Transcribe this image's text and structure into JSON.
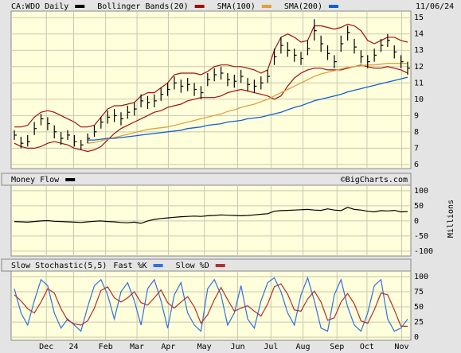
{
  "chart_data": [
    {
      "type": "ohlc",
      "date": "11/06/24",
      "ylim": [
        5.75,
        15.4
      ],
      "yticks": [
        6,
        7,
        8,
        9,
        10,
        11,
        12,
        13,
        14,
        15
      ],
      "series": [
        {
          "name": "CA:WDO Daily",
          "color": "#000000",
          "high": [
            8.1,
            7.7,
            7.8,
            8.6,
            9.1,
            8.9,
            8.4,
            8.0,
            8.1,
            7.8,
            7.5,
            7.9,
            8.4,
            8.9,
            9.3,
            9.4,
            9.2,
            9.6,
            9.8,
            10.3,
            10.2,
            10.3,
            10.7,
            11.0,
            11.4,
            11.2,
            11.3,
            11.0,
            10.8,
            11.6,
            11.9,
            12.0,
            11.6,
            11.5,
            11.8,
            11.3,
            11.2,
            11.4,
            11.8,
            13.1,
            13.8,
            13.5,
            13.1,
            12.9,
            13.6,
            14.9,
            13.9,
            13.3,
            12.7,
            13.9,
            14.5,
            13.7,
            13.0,
            12.7,
            13.1,
            13.7,
            14.0,
            13.3,
            12.7,
            12.3
          ],
          "low": [
            7.5,
            7.0,
            7.1,
            7.8,
            8.4,
            8.1,
            7.6,
            7.2,
            7.5,
            7.1,
            6.9,
            7.3,
            7.7,
            8.2,
            8.5,
            8.6,
            8.4,
            8.8,
            9.0,
            9.5,
            9.4,
            9.5,
            9.9,
            10.2,
            10.6,
            10.4,
            10.5,
            10.2,
            10.0,
            10.8,
            11.1,
            11.2,
            10.8,
            10.7,
            11.0,
            10.5,
            10.4,
            10.6,
            11.0,
            12.1,
            12.8,
            12.6,
            12.3,
            12.1,
            12.7,
            13.6,
            12.9,
            12.4,
            11.9,
            12.9,
            13.6,
            12.8,
            12.2,
            11.9,
            12.3,
            12.9,
            13.2,
            12.5,
            11.9,
            11.5
          ],
          "close": [
            7.8,
            7.3,
            7.4,
            8.2,
            8.8,
            8.5,
            8.0,
            7.6,
            7.8,
            7.4,
            7.2,
            7.6,
            8.0,
            8.6,
            8.9,
            9.0,
            8.8,
            9.2,
            9.4,
            9.9,
            9.8,
            9.9,
            10.3,
            10.6,
            11.0,
            10.8,
            10.9,
            10.6,
            10.4,
            11.2,
            11.5,
            11.6,
            11.2,
            11.1,
            11.4,
            10.9,
            10.8,
            11.0,
            11.4,
            12.6,
            13.3,
            13.0,
            12.7,
            12.5,
            13.1,
            14.2,
            13.4,
            12.8,
            12.3,
            13.4,
            14.1,
            13.2,
            12.6,
            12.3,
            12.7,
            13.3,
            13.6,
            12.9,
            12.3,
            11.9
          ]
        },
        {
          "name": "Bollinger Bands(20)",
          "color": "#a01010",
          "upper": [
            8.3,
            8.3,
            8.4,
            8.9,
            9.2,
            9.3,
            9.2,
            9.0,
            8.8,
            8.6,
            8.3,
            8.3,
            8.4,
            8.9,
            9.4,
            9.6,
            9.6,
            9.7,
            9.8,
            10.2,
            10.4,
            10.4,
            10.7,
            11.0,
            11.5,
            11.6,
            11.6,
            11.6,
            11.5,
            11.7,
            12.0,
            12.1,
            12.1,
            12.0,
            12.0,
            11.9,
            11.8,
            11.6,
            11.8,
            13.0,
            13.8,
            14.0,
            13.8,
            13.5,
            13.6,
            14.5,
            14.5,
            14.4,
            14.3,
            14.4,
            14.6,
            14.5,
            14.2,
            13.6,
            13.4,
            13.6,
            13.8,
            13.8,
            13.6,
            13.5
          ],
          "lower": [
            7.3,
            7.1,
            7.0,
            7.0,
            7.1,
            7.3,
            7.4,
            7.3,
            7.2,
            7.0,
            6.9,
            6.8,
            6.9,
            7.1,
            7.5,
            7.9,
            8.2,
            8.4,
            8.6,
            8.8,
            9.0,
            9.2,
            9.3,
            9.5,
            9.6,
            9.7,
            9.9,
            10.0,
            10.1,
            10.1,
            10.1,
            10.2,
            10.4,
            10.5,
            10.6,
            10.5,
            10.4,
            10.3,
            10.2,
            10.0,
            10.2,
            10.8,
            11.3,
            11.6,
            11.8,
            11.9,
            11.9,
            11.8,
            11.8,
            11.8,
            11.9,
            12.0,
            12.1,
            12.0,
            11.9,
            11.9,
            12.0,
            11.9,
            11.8,
            11.6
          ]
        },
        {
          "name": "SMA(100)",
          "color": "#e0a040",
          "values": [
            null,
            null,
            null,
            null,
            null,
            null,
            null,
            null,
            null,
            null,
            null,
            7.3,
            7.35,
            7.45,
            7.55,
            7.65,
            7.75,
            7.85,
            7.95,
            8.05,
            8.15,
            8.2,
            8.25,
            8.3,
            8.4,
            8.5,
            8.6,
            8.7,
            8.8,
            8.9,
            9.0,
            9.1,
            9.25,
            9.35,
            9.5,
            9.6,
            9.7,
            9.85,
            10.0,
            10.2,
            10.4,
            10.6,
            10.8,
            11.0,
            11.2,
            11.4,
            11.55,
            11.65,
            11.75,
            11.85,
            11.95,
            12.0,
            12.05,
            12.1,
            12.1,
            12.15,
            12.2,
            12.2,
            12.2,
            12.2
          ]
        },
        {
          "name": "SMA(200)",
          "color": "#1060d0",
          "values": [
            null,
            null,
            null,
            null,
            null,
            null,
            null,
            null,
            null,
            null,
            null,
            7.5,
            7.5,
            7.55,
            7.6,
            7.6,
            7.65,
            7.7,
            7.75,
            7.8,
            7.85,
            7.9,
            7.95,
            8.0,
            8.05,
            8.1,
            8.2,
            8.25,
            8.3,
            8.4,
            8.45,
            8.5,
            8.6,
            8.65,
            8.7,
            8.8,
            8.85,
            8.9,
            9.0,
            9.1,
            9.2,
            9.35,
            9.5,
            9.6,
            9.75,
            9.9,
            10.0,
            10.1,
            10.2,
            10.3,
            10.45,
            10.55,
            10.65,
            10.75,
            10.85,
            10.95,
            11.05,
            11.15,
            11.25,
            11.35
          ]
        }
      ]
    },
    {
      "type": "line",
      "watermark": "©BigCharts.com",
      "ylabel": "Millions",
      "ylim": [
        -116,
        118
      ],
      "yticks": [
        100,
        50,
        0,
        -50,
        -100
      ],
      "series": [
        {
          "name": "Money Flow",
          "color": "#000000",
          "values": [
            -2,
            -3,
            -4,
            -2,
            0,
            1,
            -1,
            -2,
            -3,
            -4,
            -5,
            -3,
            -1,
            0,
            -2,
            -3,
            -5,
            -6,
            -4,
            -8,
            0,
            5,
            8,
            10,
            12,
            14,
            15,
            16,
            15,
            17,
            18,
            20,
            19,
            18,
            17,
            18,
            20,
            22,
            24,
            32,
            34,
            35,
            36,
            37,
            38,
            36,
            35,
            40,
            36,
            34,
            45,
            38,
            36,
            32,
            30,
            34,
            33,
            35,
            30,
            31
          ]
        }
      ]
    },
    {
      "type": "line",
      "title": "Slow Stochastic(5,5)",
      "ylim": [
        -5,
        109
      ],
      "yticks": [
        0,
        25,
        50,
        75,
        100
      ],
      "xticks": [
        {
          "value": 4.8,
          "label": "Dec"
        },
        {
          "value": 8.9,
          "label": "24"
        },
        {
          "value": 13.7,
          "label": "Feb"
        },
        {
          "value": 18.4,
          "label": "Mar"
        },
        {
          "value": 23.1,
          "label": "Apr"
        },
        {
          "value": 28.5,
          "label": "May"
        },
        {
          "value": 33.5,
          "label": "Jun"
        },
        {
          "value": 38.5,
          "label": "Jul"
        },
        {
          "value": 43.3,
          "label": "Aug"
        },
        {
          "value": 48.4,
          "label": "Sep"
        },
        {
          "value": 52.9,
          "label": "Oct"
        },
        {
          "value": 58.1,
          "label": "Nov"
        }
      ],
      "series": [
        {
          "name": "Fast %K",
          "color": "#3070e0",
          "values": [
            80,
            40,
            20,
            60,
            95,
            85,
            40,
            15,
            30,
            20,
            10,
            50,
            85,
            95,
            70,
            30,
            75,
            90,
            60,
            20,
            80,
            95,
            60,
            15,
            70,
            90,
            40,
            20,
            10,
            80,
            95,
            70,
            20,
            40,
            85,
            30,
            15,
            60,
            90,
            98,
            75,
            40,
            20,
            70,
            98,
            60,
            15,
            10,
            70,
            95,
            50,
            20,
            10,
            40,
            85,
            95,
            30,
            10,
            15,
            30
          ]
        },
        {
          "name": "Slow %D",
          "color": "#b03030",
          "values": [
            70,
            60,
            47,
            40,
            58,
            80,
            73,
            47,
            28,
            22,
            20,
            27,
            48,
            77,
            83,
            65,
            58,
            65,
            75,
            57,
            53,
            65,
            78,
            57,
            48,
            58,
            67,
            50,
            23,
            37,
            62,
            82,
            62,
            43,
            48,
            52,
            43,
            35,
            55,
            83,
            88,
            71,
            45,
            43,
            63,
            76,
            58,
            28,
            32,
            58,
            72,
            55,
            27,
            23,
            45,
            73,
            70,
            45,
            18,
            18
          ]
        }
      ]
    }
  ]
}
